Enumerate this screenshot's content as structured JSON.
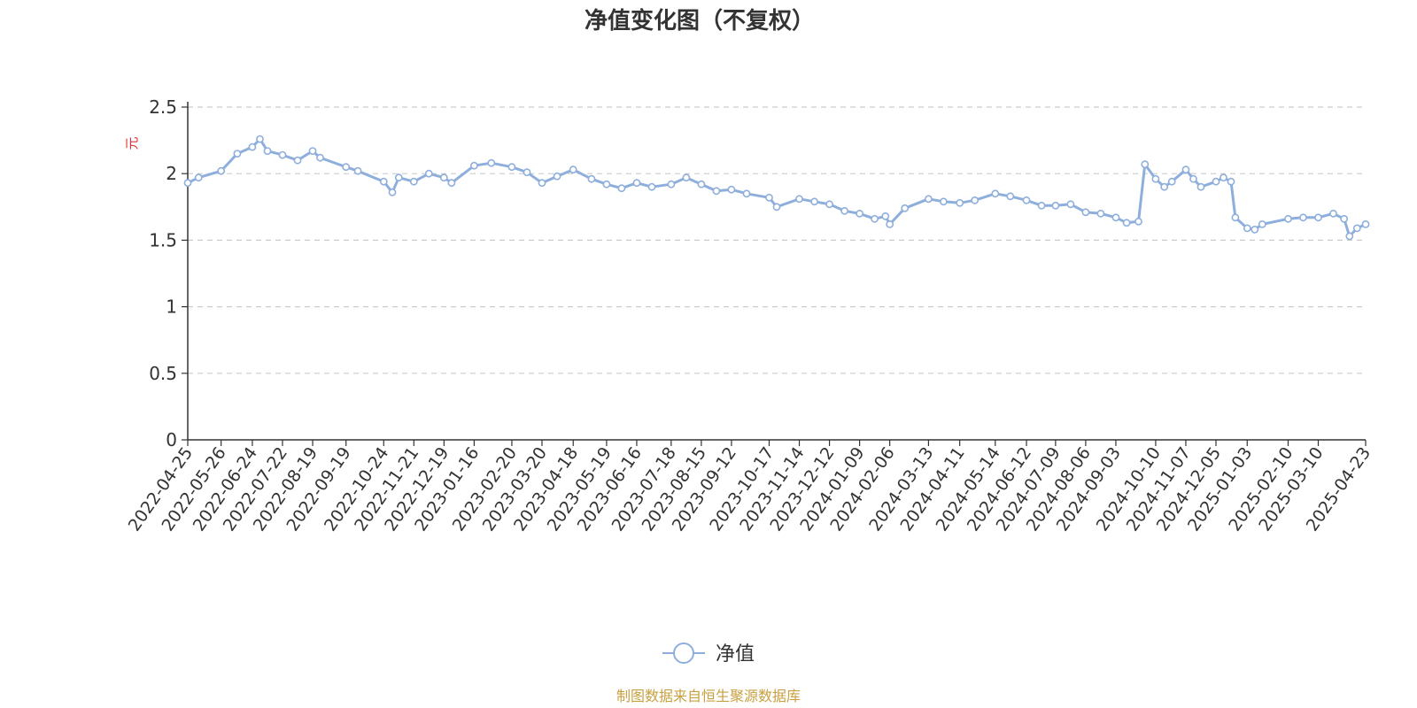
{
  "chart_data": {
    "type": "line",
    "title": "净值变化图（不复权）",
    "ylabel": "元",
    "ylim": [
      0,
      2.5
    ],
    "y_ticks": [
      "0",
      "0.5",
      "1",
      "1.5",
      "2",
      "2.5"
    ],
    "x_tick_labels": [
      "2022-04-25",
      "2022-05-26",
      "2022-06-24",
      "2022-07-22",
      "2022-08-19",
      "2022-09-19",
      "2022-10-24",
      "2022-11-21",
      "2022-12-19",
      "2023-01-16",
      "2023-02-20",
      "2023-03-20",
      "2023-04-18",
      "2023-05-19",
      "2023-06-16",
      "2023-07-18",
      "2023-08-15",
      "2023-09-12",
      "2023-10-17",
      "2023-11-14",
      "2023-12-12",
      "2024-01-09",
      "2024-02-06",
      "2024-03-13",
      "2024-04-11",
      "2024-05-14",
      "2024-06-12",
      "2024-07-09",
      "2024-08-06",
      "2024-09-03",
      "2024-10-10",
      "2024-11-07",
      "2024-12-05",
      "2025-01-03",
      "2025-02-10",
      "2025-03-10",
      "2025-04-23"
    ],
    "grid": true,
    "legend_position": "bottom-center",
    "series": [
      {
        "name": "净值",
        "color": "#8eaedc",
        "x": [
          "2022-04-25",
          "2022-05-05",
          "2022-05-26",
          "2022-06-10",
          "2022-06-24",
          "2022-07-01",
          "2022-07-08",
          "2022-07-22",
          "2022-08-05",
          "2022-08-19",
          "2022-08-26",
          "2022-09-19",
          "2022-09-30",
          "2022-10-24",
          "2022-11-01",
          "2022-11-07",
          "2022-11-21",
          "2022-12-05",
          "2022-12-19",
          "2022-12-26",
          "2023-01-16",
          "2023-02-01",
          "2023-02-20",
          "2023-03-06",
          "2023-03-20",
          "2023-04-03",
          "2023-04-18",
          "2023-05-05",
          "2023-05-19",
          "2023-06-02",
          "2023-06-16",
          "2023-06-30",
          "2023-07-18",
          "2023-08-01",
          "2023-08-15",
          "2023-08-29",
          "2023-09-12",
          "2023-09-26",
          "2023-10-17",
          "2023-10-24",
          "2023-11-14",
          "2023-11-28",
          "2023-12-12",
          "2023-12-26",
          "2024-01-09",
          "2024-01-23",
          "2024-02-02",
          "2024-02-06",
          "2024-02-20",
          "2024-03-13",
          "2024-03-27",
          "2024-04-11",
          "2024-04-25",
          "2024-05-14",
          "2024-05-28",
          "2024-06-12",
          "2024-06-26",
          "2024-07-09",
          "2024-07-23",
          "2024-08-06",
          "2024-08-20",
          "2024-09-03",
          "2024-09-13",
          "2024-09-24",
          "2024-09-30",
          "2024-10-10",
          "2024-10-18",
          "2024-10-25",
          "2024-11-07",
          "2024-11-14",
          "2024-11-21",
          "2024-12-05",
          "2024-12-12",
          "2024-12-19",
          "2024-12-23",
          "2025-01-03",
          "2025-01-10",
          "2025-01-17",
          "2025-02-10",
          "2025-02-24",
          "2025-03-10",
          "2025-03-24",
          "2025-04-03",
          "2025-04-08",
          "2025-04-15",
          "2025-04-23"
        ],
        "y": [
          1.93,
          1.97,
          2.02,
          2.15,
          2.2,
          2.26,
          2.17,
          2.14,
          2.1,
          2.17,
          2.12,
          2.05,
          2.02,
          1.94,
          1.86,
          1.97,
          1.94,
          2.0,
          1.97,
          1.93,
          2.06,
          2.08,
          2.05,
          2.01,
          1.93,
          1.98,
          2.03,
          1.96,
          1.92,
          1.89,
          1.93,
          1.9,
          1.92,
          1.97,
          1.92,
          1.87,
          1.88,
          1.85,
          1.82,
          1.75,
          1.81,
          1.79,
          1.77,
          1.72,
          1.7,
          1.66,
          1.68,
          1.62,
          1.74,
          1.81,
          1.79,
          1.78,
          1.8,
          1.85,
          1.83,
          1.8,
          1.76,
          1.76,
          1.77,
          1.71,
          1.7,
          1.67,
          1.63,
          1.64,
          2.07,
          1.96,
          1.9,
          1.94,
          2.03,
          1.96,
          1.9,
          1.94,
          1.97,
          1.94,
          1.67,
          1.59,
          1.58,
          1.62,
          1.66,
          1.67,
          1.67,
          1.7,
          1.66,
          1.53,
          1.59,
          1.62
        ]
      }
    ]
  },
  "legend": {
    "label": "净值"
  },
  "footer": {
    "source": "制图数据来自恒生聚源数据库"
  },
  "colors": {
    "line": "#8eaedc",
    "grid": "#cccccc",
    "axis": "#333333",
    "unit": "#e03030",
    "source": "#c8a040"
  }
}
